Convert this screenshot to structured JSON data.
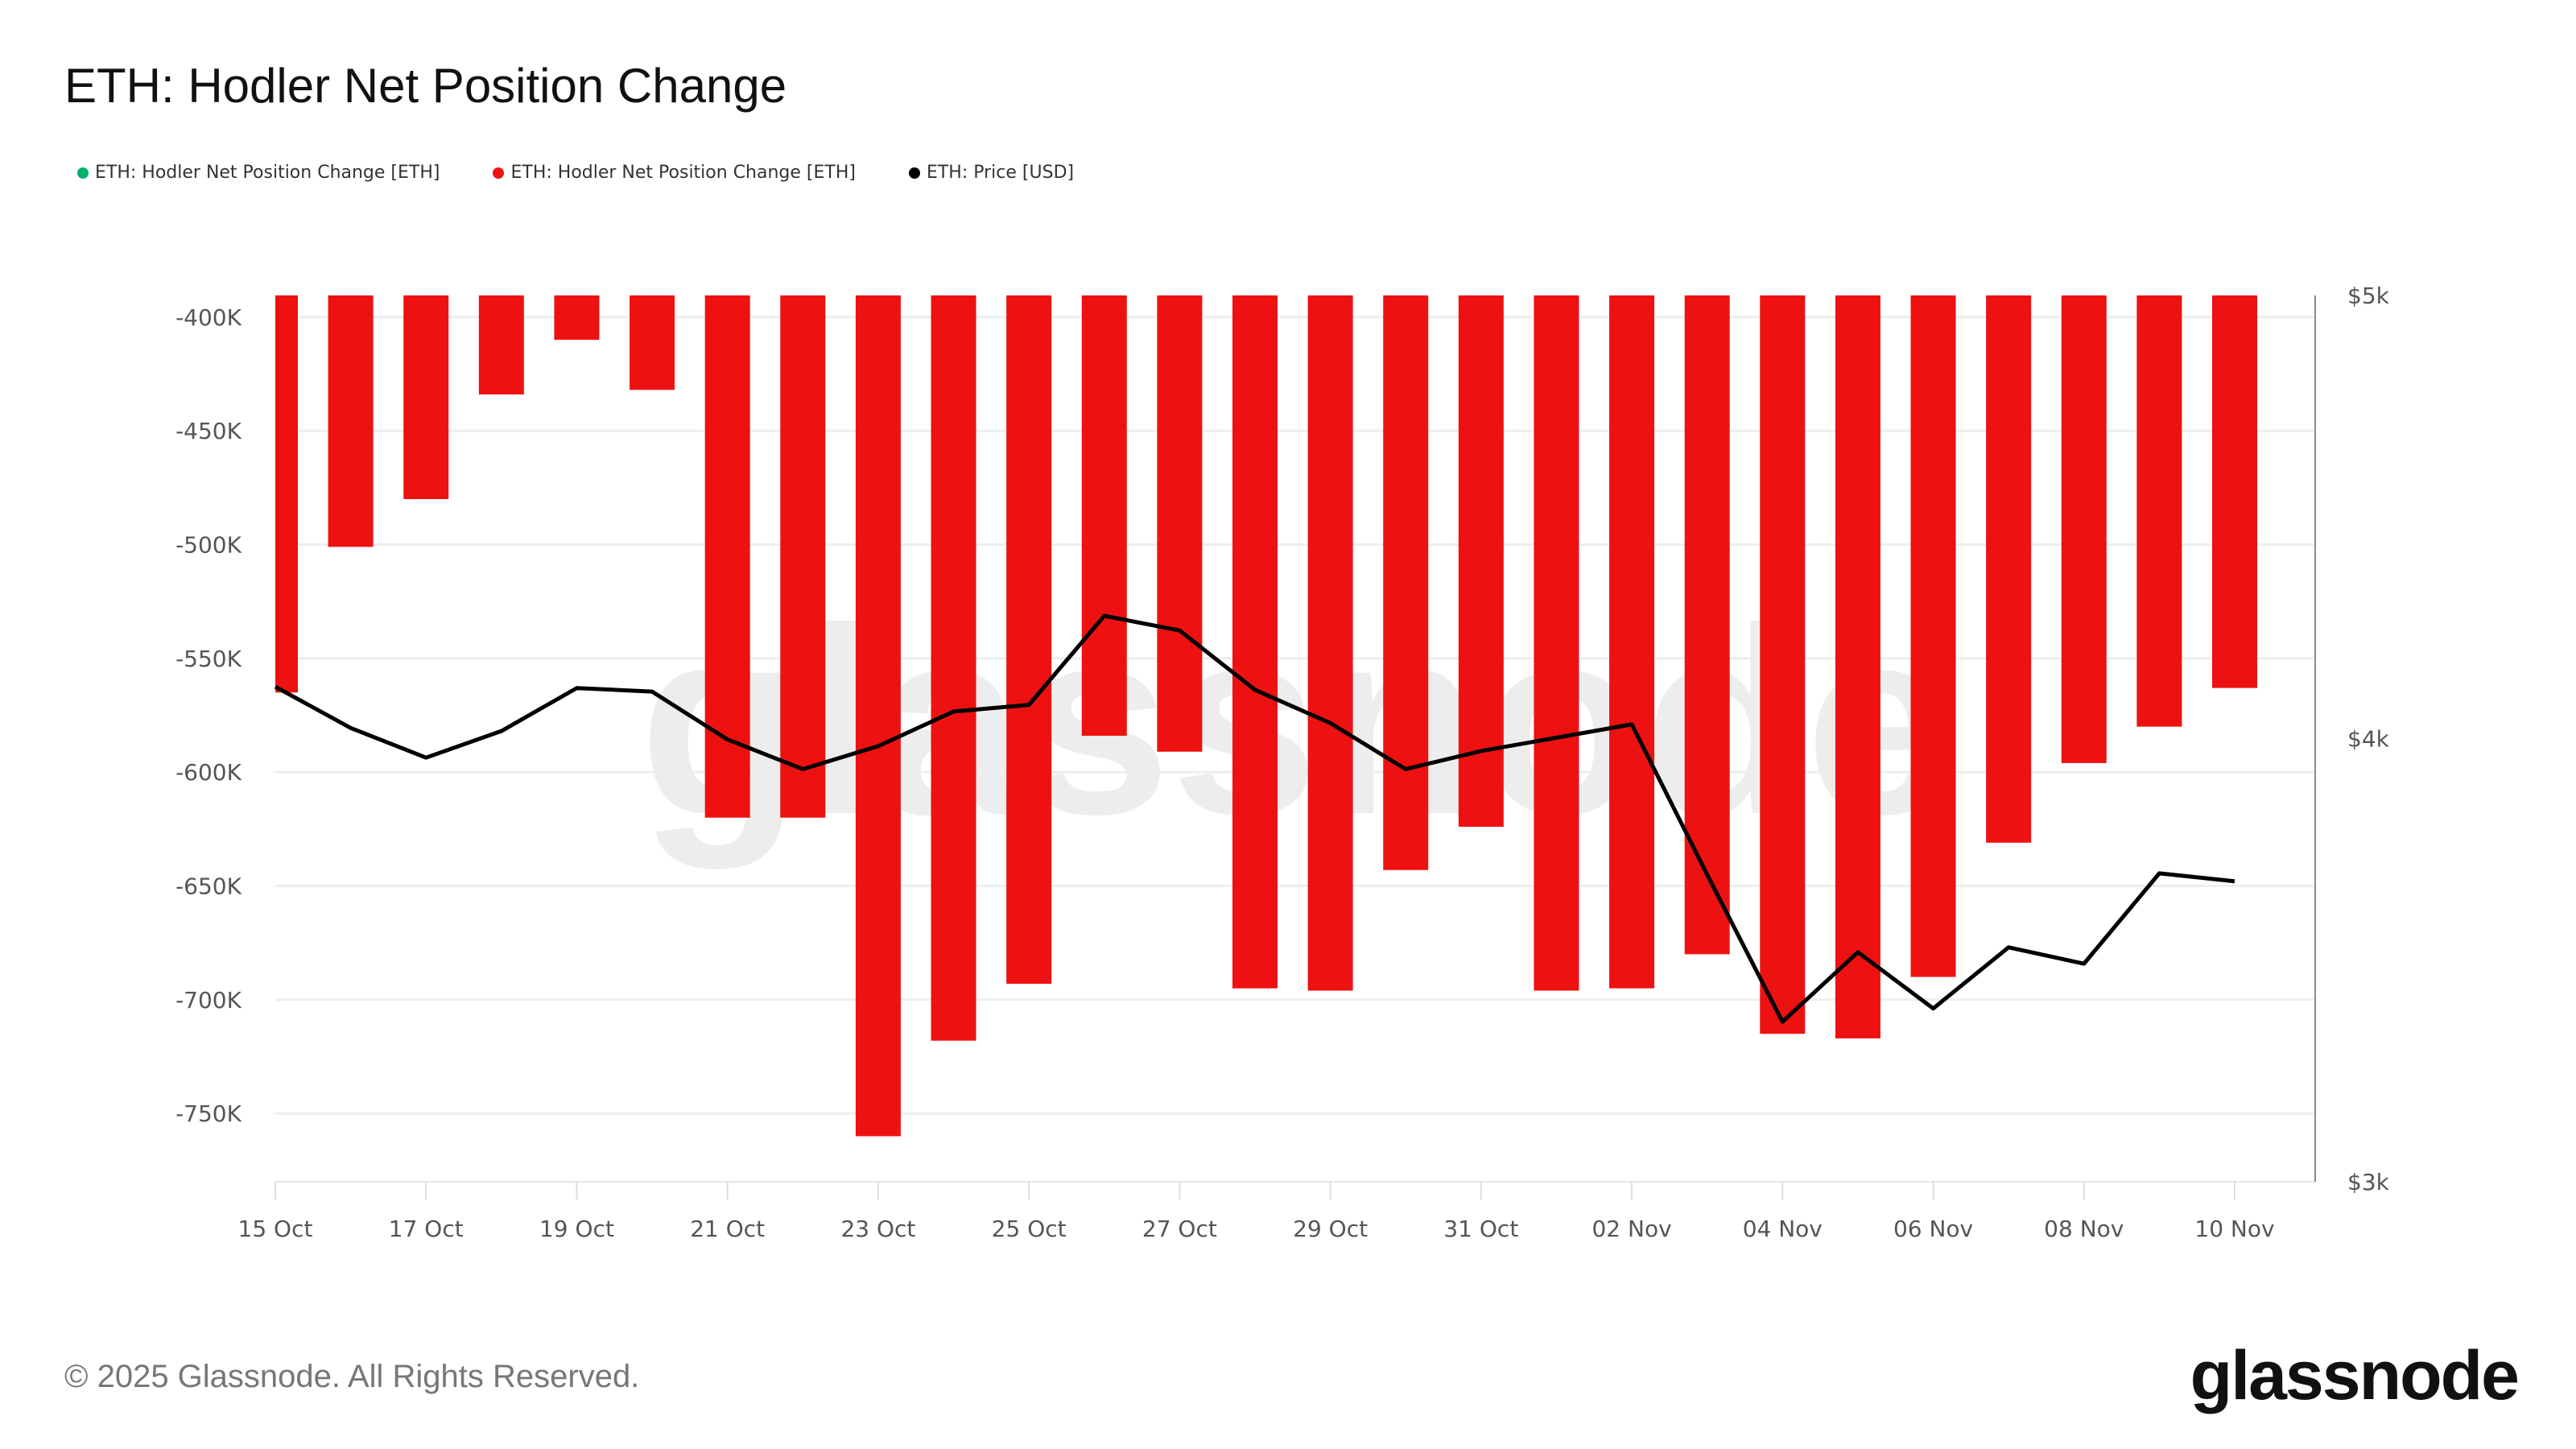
{
  "title": "ETH: Hodler Net Position Change",
  "legend": [
    {
      "label": "ETH: Hodler Net Position Change [ETH]",
      "color": "#00b36b"
    },
    {
      "label": "ETH: Hodler Net Position Change [ETH]",
      "color": "#ee1111"
    },
    {
      "label": "ETH: Price [USD]",
      "color": "#000000"
    }
  ],
  "footer": "© 2025 Glassnode. All Rights Reserved.",
  "logo": "glassnode",
  "watermark": "glassnode",
  "chart_data": {
    "type": "bar",
    "title": "ETH: Hodler Net Position Change",
    "x": [
      "15 Oct",
      "16 Oct",
      "17 Oct",
      "18 Oct",
      "19 Oct",
      "20 Oct",
      "21 Oct",
      "22 Oct",
      "23 Oct",
      "24 Oct",
      "25 Oct",
      "26 Oct",
      "27 Oct",
      "28 Oct",
      "29 Oct",
      "30 Oct",
      "31 Oct",
      "01 Nov",
      "02 Nov",
      "03 Nov",
      "04 Nov",
      "05 Nov",
      "06 Nov",
      "07 Nov",
      "08 Nov",
      "09 Nov",
      "10 Nov"
    ],
    "x_tick_labels": [
      "15 Oct",
      "17 Oct",
      "19 Oct",
      "21 Oct",
      "23 Oct",
      "25 Oct",
      "27 Oct",
      "29 Oct",
      "31 Oct",
      "02 Nov",
      "04 Nov",
      "06 Nov",
      "08 Nov",
      "10 Nov"
    ],
    "y_left_ticks": [
      "-400K",
      "-450K",
      "-500K",
      "-550K",
      "-600K",
      "-650K",
      "-700K",
      "-750K"
    ],
    "y_left_tick_values": [
      -400000,
      -450000,
      -500000,
      -550000,
      -600000,
      -650000,
      -700000,
      -750000
    ],
    "y_left_lim": [
      -780000,
      -390500
    ],
    "y_right_ticks": [
      "$5k",
      "$4k",
      "$3k"
    ],
    "y_right_tick_values": [
      5000,
      4000,
      3000
    ],
    "y_right_lim": [
      3000,
      5000
    ],
    "grid": true,
    "legend_position": "top-left",
    "series": [
      {
        "name": "ETH: Hodler Net Position Change [ETH]",
        "type": "bar",
        "axis": "left",
        "color": "#ee1111",
        "values": [
          -565000,
          -501000,
          -480000,
          -434000,
          -410000,
          -432000,
          -620000,
          -620000,
          -760000,
          -718000,
          -693000,
          -584000,
          -591000,
          -695000,
          -696000,
          -643000,
          -624000,
          -696000,
          -695000,
          -680000,
          -715000,
          -717000,
          -690000,
          -631000,
          -596000,
          -580000,
          -563000
        ]
      },
      {
        "name": "ETH: Price [USD]",
        "type": "line",
        "axis": "right",
        "color": "#000000",
        "values": [
          4117,
          4024,
          3957,
          4017,
          4114,
          4106,
          3998,
          3931,
          3983,
          4061,
          4076,
          4277,
          4244,
          4110,
          4035,
          3931,
          3972,
          4002,
          4032,
          3693,
          3361,
          3518,
          3391,
          3529,
          3492,
          3696,
          3678
        ]
      }
    ]
  }
}
